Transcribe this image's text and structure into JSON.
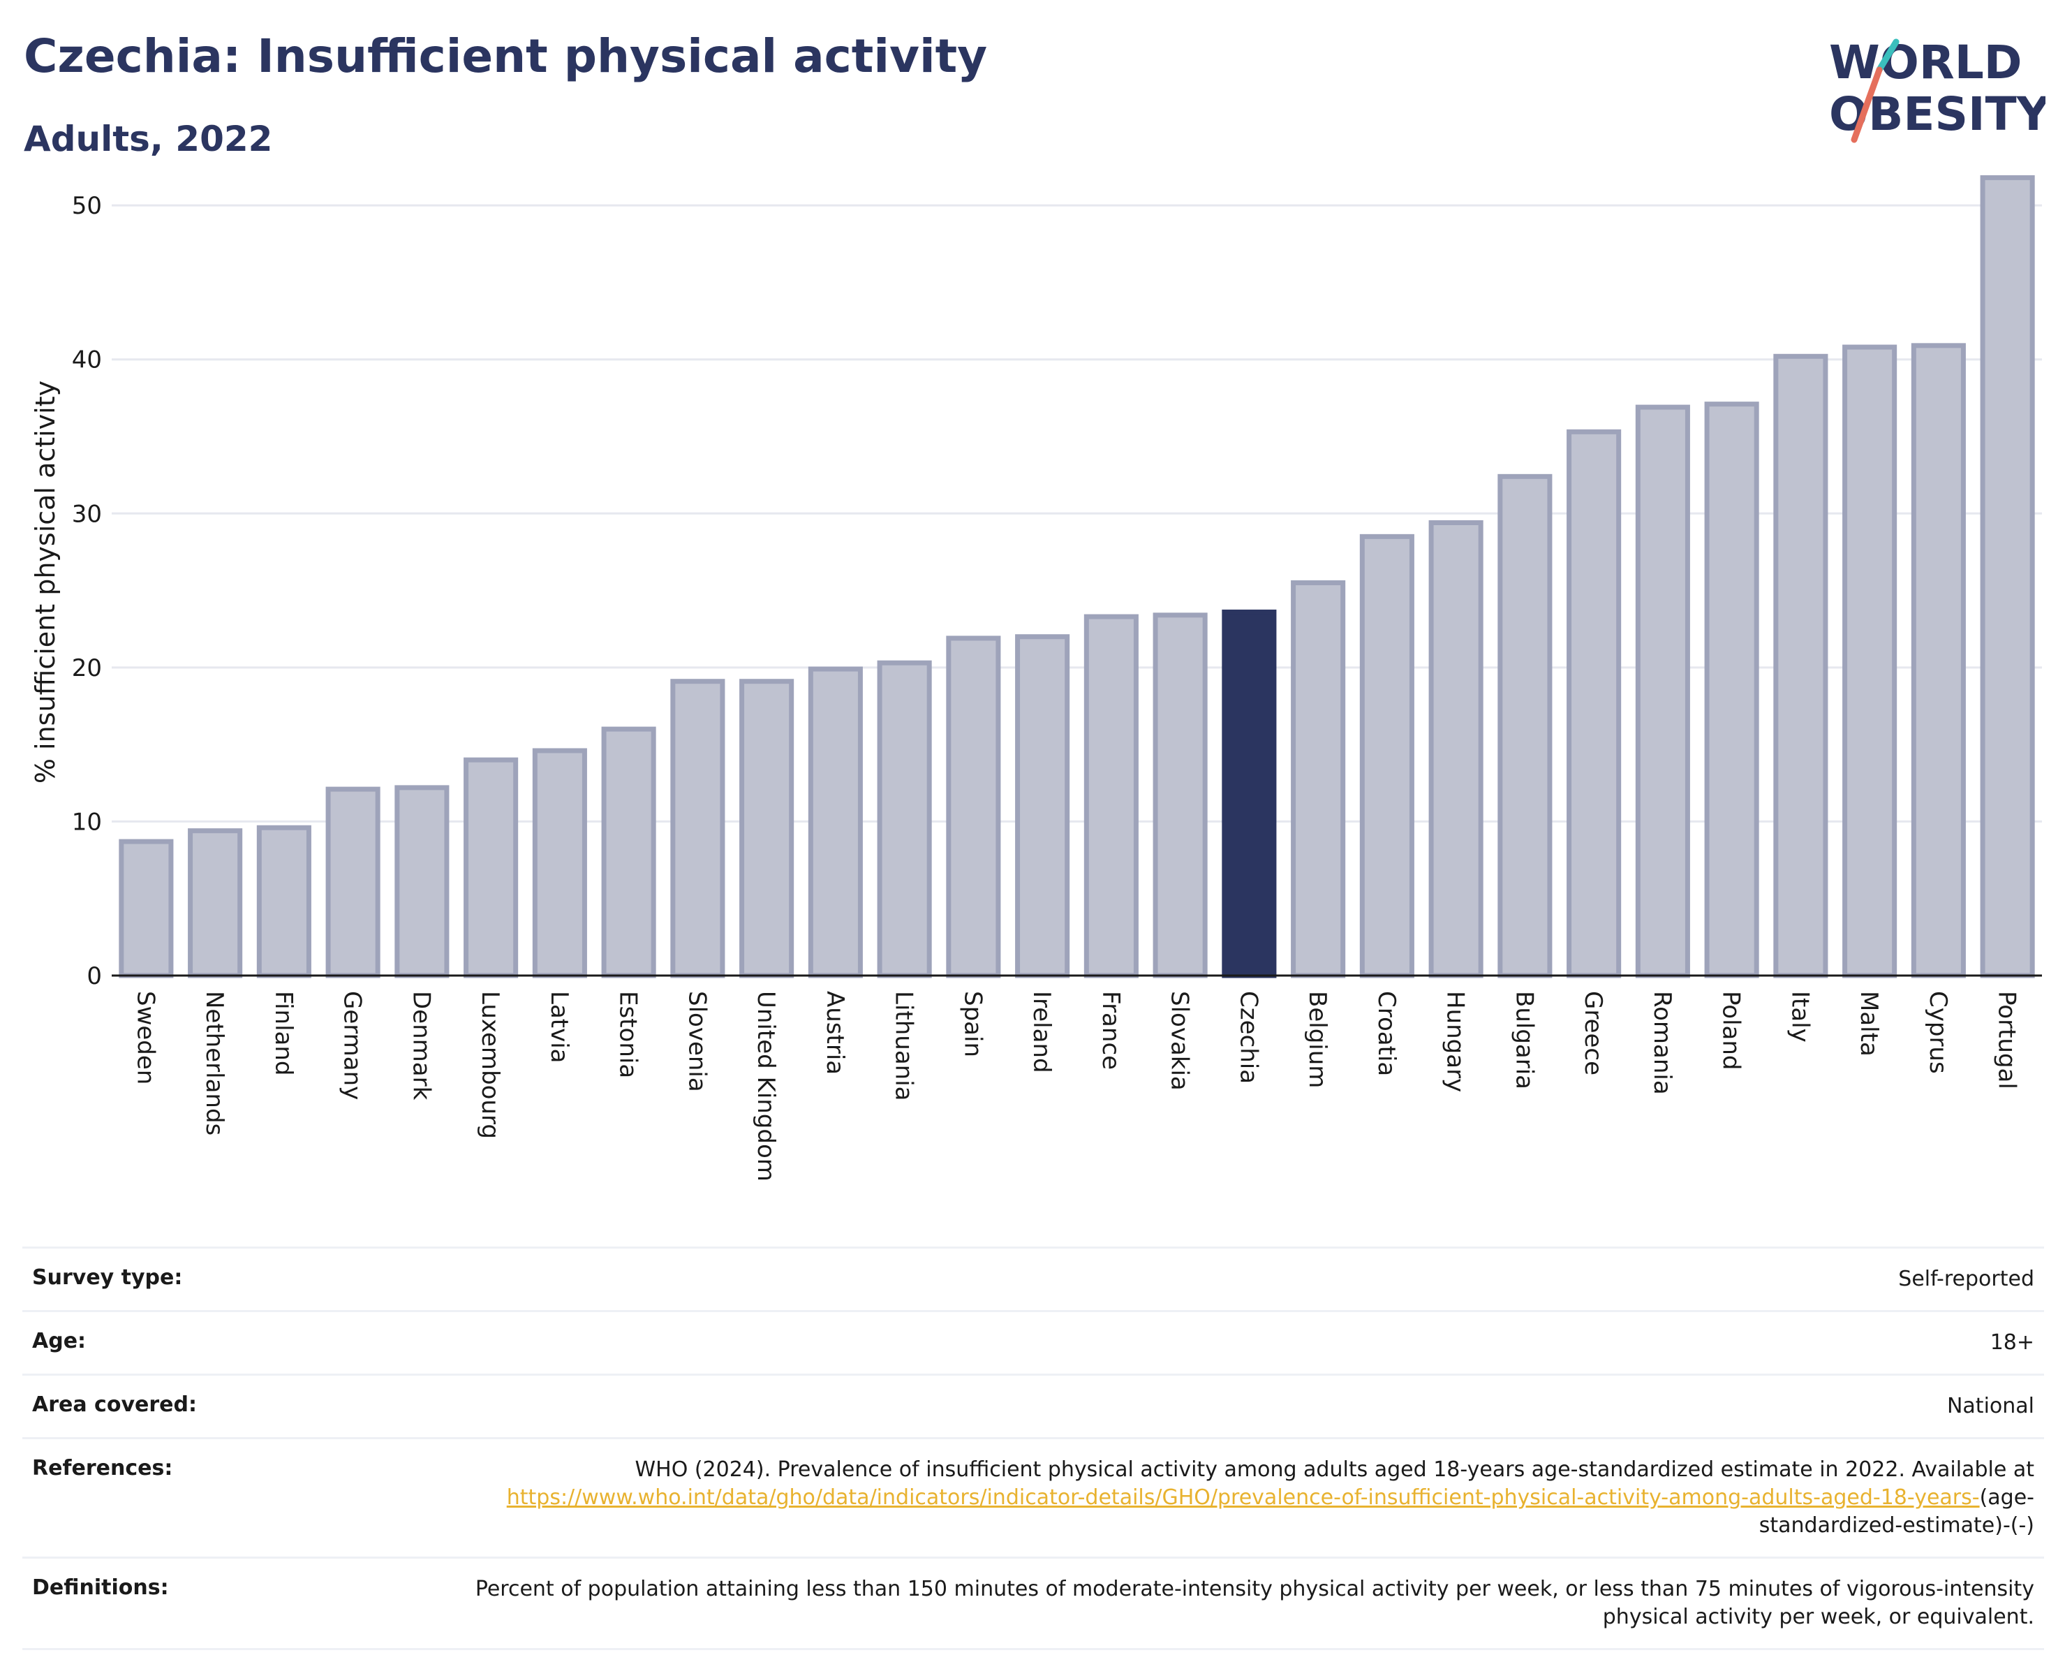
{
  "header": {
    "title": "Czechia: Insufficient physical activity",
    "subtitle": "Adults, 2022"
  },
  "logo": {
    "line1": "WORLD",
    "line2": "OBESITY"
  },
  "chart_data": {
    "type": "bar",
    "ylabel": "% insufficient physical activity",
    "ylim": [
      0,
      52
    ],
    "yticks": [
      0,
      10,
      20,
      30,
      40,
      50
    ],
    "grid": true,
    "highlight": "Czechia",
    "colors": {
      "bar": "#bfc2d0",
      "bar_edge": "#9ea3ba",
      "highlight": "#2b3560",
      "grid": "#e6e8ef"
    },
    "categories": [
      "Sweden",
      "Netherlands",
      "Finland",
      "Germany",
      "Denmark",
      "Luxembourg",
      "Latvia",
      "Estonia",
      "Slovenia",
      "United Kingdom",
      "Austria",
      "Lithuania",
      "Spain",
      "Ireland",
      "France",
      "Slovakia",
      "Czechia",
      "Belgium",
      "Croatia",
      "Hungary",
      "Bulgaria",
      "Greece",
      "Romania",
      "Poland",
      "Italy",
      "Malta",
      "Cyprus",
      "Portugal"
    ],
    "values": [
      8.7,
      9.4,
      9.6,
      12.1,
      12.2,
      14.0,
      14.6,
      16.0,
      19.1,
      19.1,
      19.9,
      20.3,
      21.9,
      22.0,
      23.3,
      23.4,
      23.6,
      25.5,
      28.5,
      29.4,
      32.4,
      35.3,
      36.9,
      37.1,
      40.2,
      40.8,
      40.9,
      51.8
    ]
  },
  "info": [
    {
      "label": "Survey type:",
      "value": "Self-reported"
    },
    {
      "label": "Age:",
      "value": "18+"
    },
    {
      "label": "Area covered:",
      "value": "National"
    },
    {
      "label": "References:",
      "value": "WHO (2024). Prevalence of insufficient physical activity among adults aged 18-years age-standardized estimate in 2022. Available at",
      "link": "https://www.who.int/data/gho/data/indicators/indicator-details/GHO/prevalence-of-insufficient-physical-activity-among-adults-aged-18-years-",
      "suffix": "(age-standardized-estimate)-(-)"
    },
    {
      "label": "Definitions:",
      "value": "Percent of population attaining less than 150 minutes of moderate-intensity physical activity per week, or less than 75 minutes of vigorous-intensity physical activity per week, or equivalent."
    }
  ]
}
